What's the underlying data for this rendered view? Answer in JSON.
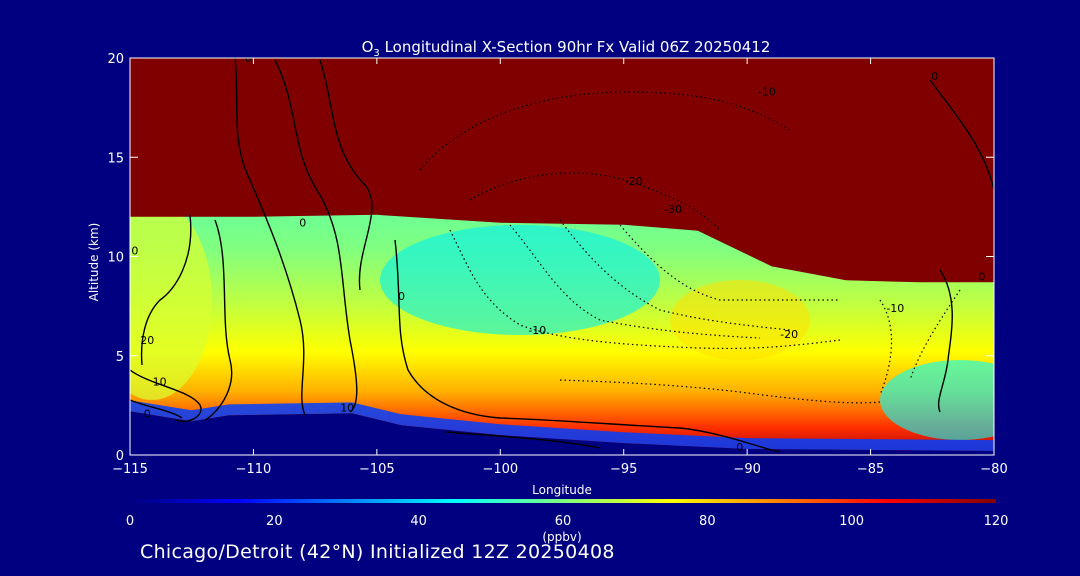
{
  "chart_data": {
    "type": "heatmap",
    "title_main": "O",
    "title_sub": "3",
    "title_rest": " Longitudinal X-Section 90hr  Fx Valid 06Z 20250412",
    "xlabel": "Longitude",
    "ylabel": "Altitude (km)",
    "xlim": [
      -115,
      -80
    ],
    "ylim": [
      0,
      20
    ],
    "x_ticks": [
      "-115",
      "-110",
      "-105",
      "-100",
      "-95",
      "-90",
      "-85",
      "-80"
    ],
    "x_tick_values": [
      -115,
      -110,
      -105,
      -100,
      -95,
      -90,
      -85,
      -80
    ],
    "y_ticks": [
      "0",
      "5",
      "10",
      "15",
      "20"
    ],
    "y_tick_values": [
      0,
      5,
      10,
      15,
      20
    ],
    "colorbar": {
      "label": "(ppbv)",
      "range": [
        0,
        120
      ],
      "ticks": [
        "0",
        "20",
        "40",
        "60",
        "80",
        "100",
        "120"
      ],
      "tick_values": [
        0,
        20,
        40,
        60,
        80,
        100,
        120
      ],
      "colors": [
        "#00007f",
        "#0000ff",
        "#0080ff",
        "#00ffff",
        "#80ff80",
        "#ffff00",
        "#ff8000",
        "#ff0000",
        "#800000"
      ]
    },
    "terrain_km": [
      [
        -115,
        2.2
      ],
      [
        -112.5,
        1.7
      ],
      [
        -111,
        2.0
      ],
      [
        -106,
        2.1
      ],
      [
        -104,
        1.5
      ],
      [
        -100,
        1.0
      ],
      [
        -95,
        0.6
      ],
      [
        -90,
        0.3
      ],
      [
        -80,
        0.2
      ]
    ],
    "stratosphere_base_km": [
      [
        -115,
        12.0
      ],
      [
        -110,
        12.0
      ],
      [
        -105,
        12.1
      ],
      [
        -100,
        11.7
      ],
      [
        -95,
        11.6
      ],
      [
        -92,
        11.3
      ],
      [
        -89,
        9.5
      ],
      [
        -86,
        8.8
      ],
      [
        -83,
        8.7
      ],
      [
        -80,
        8.7
      ]
    ],
    "contour_labels": [
      {
        "text": "0",
        "x": -110.2,
        "y": 19.8
      },
      {
        "text": "0",
        "x": -82.4,
        "y": 18.9
      },
      {
        "text": "-10",
        "x": -89.2,
        "y": 18.1
      },
      {
        "text": "-20",
        "x": -94.6,
        "y": 13.6
      },
      {
        "text": "-30",
        "x": -93.0,
        "y": 12.2
      },
      {
        "text": "0",
        "x": -108.0,
        "y": 11.5
      },
      {
        "text": "0",
        "x": -114.8,
        "y": 10.1
      },
      {
        "text": "0",
        "x": -104.0,
        "y": 7.8
      },
      {
        "text": "-10",
        "x": -98.5,
        "y": 6.1
      },
      {
        "text": "-20",
        "x": -88.3,
        "y": 5.9
      },
      {
        "text": "-10",
        "x": -84.0,
        "y": 7.2
      },
      {
        "text": "0",
        "x": -80.5,
        "y": 8.8
      },
      {
        "text": "20",
        "x": -114.3,
        "y": 5.6
      },
      {
        "text": "10",
        "x": -113.8,
        "y": 3.5
      },
      {
        "text": "0",
        "x": -114.3,
        "y": 1.9
      },
      {
        "text": "10",
        "x": -106.2,
        "y": 2.2
      },
      {
        "text": "0",
        "x": -90.3,
        "y": 0.2
      }
    ]
  },
  "footer": "Chicago/Detroit (42°N) Initialized 12Z 20250408"
}
